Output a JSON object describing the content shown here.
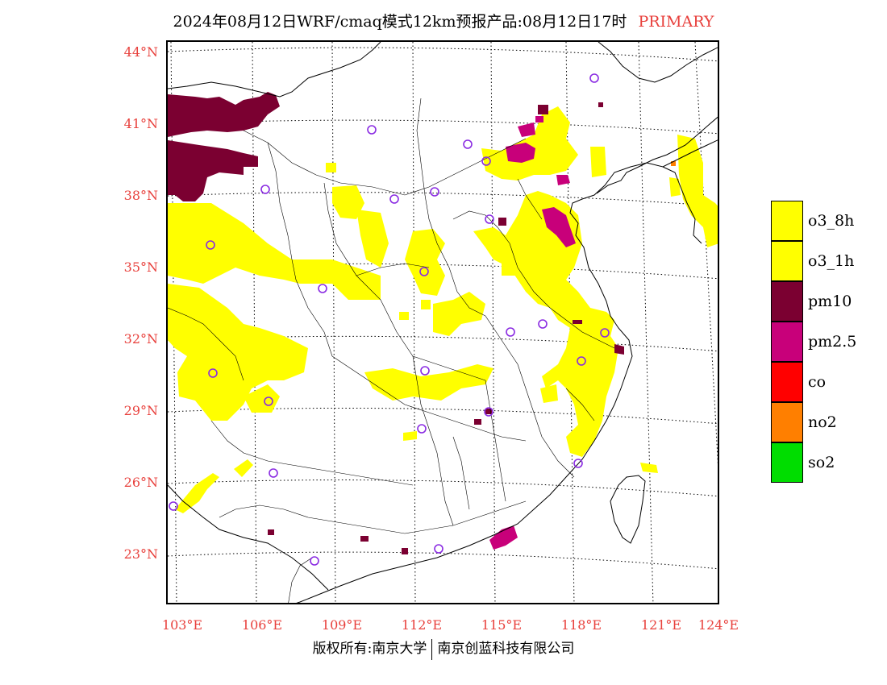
{
  "title": {
    "text": "2024年08月12日WRF/cmaq模式12km预报产品:08月12日17时",
    "tag": "PRIMARY",
    "tag_color": "#e8403c"
  },
  "axes": {
    "lat_labels": [
      "44°N",
      "41°N",
      "38°N",
      "35°N",
      "32°N",
      "29°N",
      "26°N",
      "23°N"
    ],
    "lon_labels": [
      "103°E",
      "106°E",
      "109°E",
      "112°E",
      "115°E",
      "118°E",
      "121°E",
      "124°E"
    ]
  },
  "legend": {
    "items": [
      {
        "label": "o3_8h",
        "color": "#ffff00"
      },
      {
        "label": "o3_1h",
        "color": "#ffff00"
      },
      {
        "label": "pm10",
        "color": "#7b0031"
      },
      {
        "label": "pm2.5",
        "color": "#c8007a"
      },
      {
        "label": "co",
        "color": "#ff0000"
      },
      {
        "label": "no2",
        "color": "#ff7f00"
      },
      {
        "label": "so2",
        "color": "#00dd00"
      }
    ]
  },
  "colors": {
    "o3": "#ffff00",
    "pm10": "#7b0031",
    "pm25": "#c8007a",
    "no2": "#ff7f00",
    "city_marker": "#8a2be2",
    "label_red": "#e8403c"
  },
  "copyright": {
    "left": "版权所有:南京大学",
    "right": "南京创蓝科技有限公司"
  }
}
